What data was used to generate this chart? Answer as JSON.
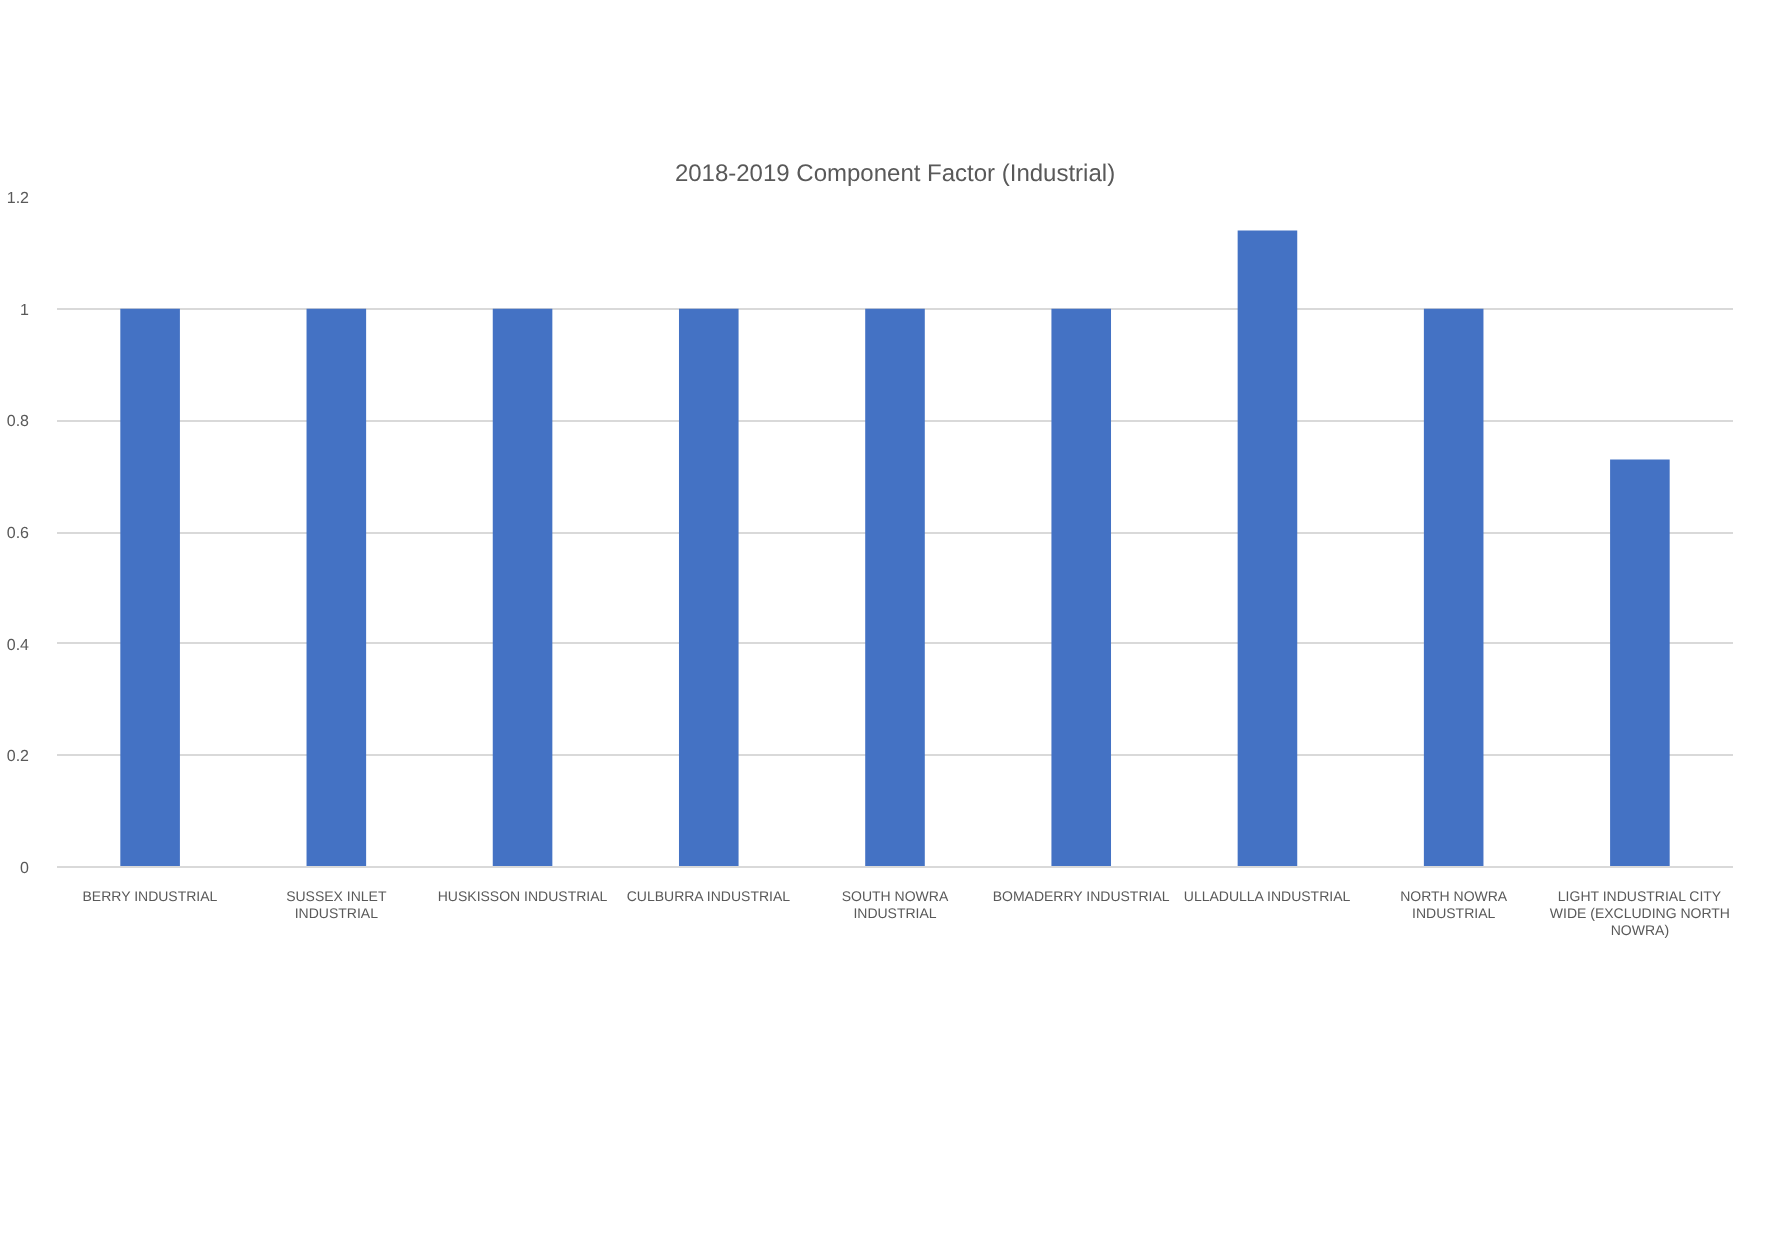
{
  "chart_data": {
    "type": "bar",
    "title": "2018-2019 Component Factor (Industrial)",
    "categories": [
      "BERRY INDUSTRIAL",
      "SUSSEX INLET INDUSTRIAL",
      "HUSKISSON INDUSTRIAL",
      "CULBURRA INDUSTRIAL",
      "SOUTH NOWRA INDUSTRIAL",
      "BOMADERRY INDUSTRIAL",
      "ULLADULLA INDUSTRIAL",
      "NORTH NOWRA INDUSTRIAL",
      "LIGHT INDUSTRIAL CITY WIDE (EXCLUDING NORTH NOWRA)"
    ],
    "values": [
      1,
      1,
      1,
      1,
      1,
      1,
      1.14,
      1,
      0.73
    ],
    "color": "#4472c4",
    "ylim": [
      0,
      1.2
    ],
    "yticks": [
      0,
      0.2,
      0.4,
      0.6,
      0.8,
      1,
      1.2
    ],
    "grid": "y"
  }
}
